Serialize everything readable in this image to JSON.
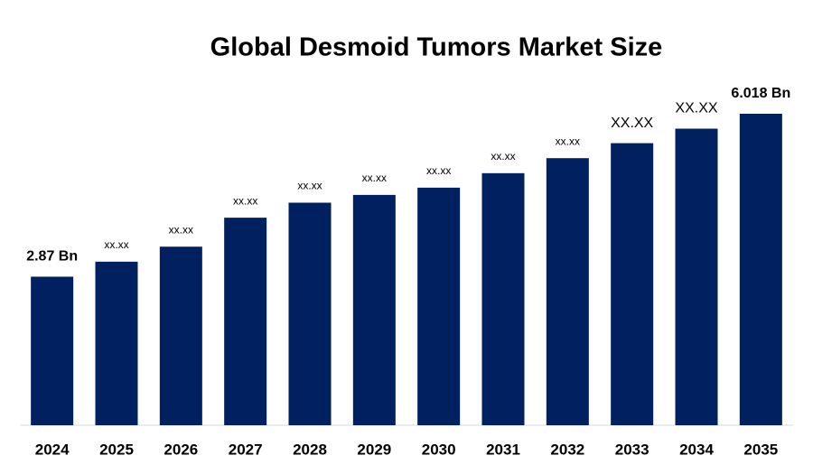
{
  "chart_data": {
    "type": "bar",
    "title": "Global Desmoid Tumors Market Size",
    "categories": [
      "2024",
      "2025",
      "2026",
      "2027",
      "2028",
      "2029",
      "2030",
      "2031",
      "2032",
      "2033",
      "2034",
      "2035"
    ],
    "values": [
      2.87,
      3.16,
      3.45,
      4.01,
      4.3,
      4.45,
      4.59,
      4.87,
      5.16,
      5.45,
      5.73,
      6.018
    ],
    "value_labels": [
      "2.87 Bn",
      "xx.xx",
      "xx.xx",
      "xx.xx",
      "xx.xx",
      "xx.xx",
      "xx.xx",
      "xx.xx",
      "xx.xx",
      "XX.XX",
      "XX.XX",
      "6.018 Bn"
    ],
    "color": "#002060"
  }
}
